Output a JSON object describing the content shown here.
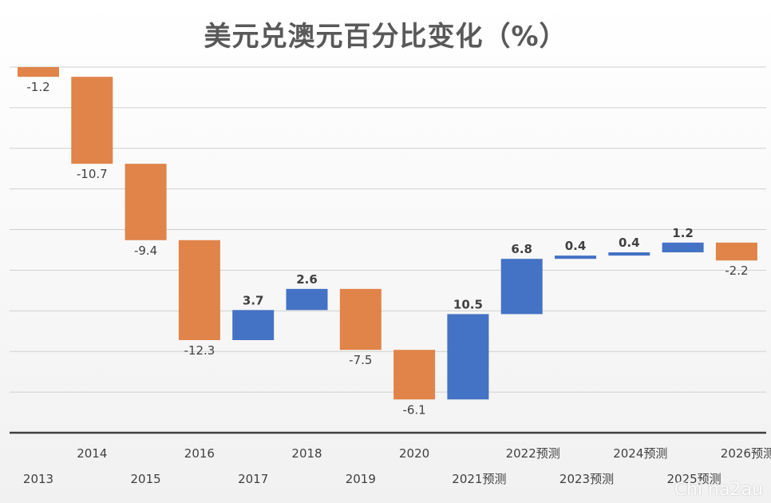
{
  "chart_data": {
    "type": "bar",
    "subtype": "waterfall",
    "title": "美元兑澳元百分比变化（%）",
    "categories": [
      "2013",
      "2014",
      "2015",
      "2016",
      "2017",
      "2018",
      "2019",
      "2020",
      "2021预测",
      "2022预测",
      "2023预测",
      "2024预测",
      "2025预测",
      "2026预测"
    ],
    "values": [
      -1.2,
      -10.7,
      -9.4,
      -12.3,
      3.7,
      2.6,
      -7.5,
      -6.1,
      10.5,
      6.8,
      0.4,
      0.4,
      1.2,
      -2.2
    ],
    "value_labels": [
      "-1.2",
      "-10.7",
      "-9.4",
      "-12.3",
      "3.7",
      "2.6",
      "-7.5",
      "-6.1",
      "10.5",
      "6.8",
      "0.4",
      "0.4",
      "1.2",
      "-2.2"
    ],
    "ylim": [
      -45,
      0
    ],
    "grid": true,
    "legend": "none",
    "colors": {
      "increase": "#4472C4",
      "decrease": "#E0844A",
      "grid": "#d0d0d0",
      "axis": "#404040",
      "text": "#404040"
    }
  },
  "watermark": "Chi na2au"
}
